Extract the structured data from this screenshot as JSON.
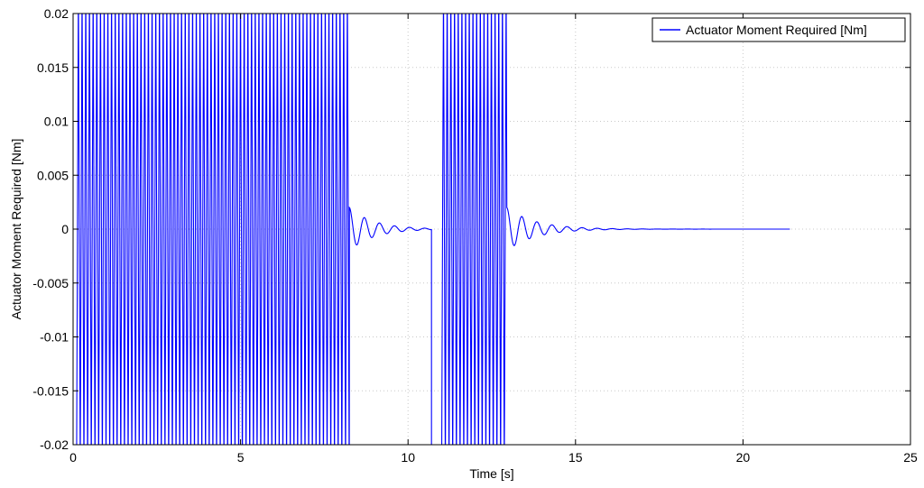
{
  "chart_data": {
    "type": "line",
    "title": "",
    "xlabel": "Time [s]",
    "ylabel": "Actuator Moment Required [Nm]",
    "xlim": [
      0,
      25
    ],
    "ylim": [
      -0.02,
      0.02
    ],
    "x_ticks": [
      "0",
      "5",
      "10",
      "15",
      "20",
      "25"
    ],
    "y_ticks": [
      "0.02",
      "0.015",
      "0.01",
      "0.005",
      "0",
      "-0.005",
      "-0.01",
      "-0.015",
      "-0.02"
    ],
    "grid": true,
    "legend_position": "top-right",
    "series": [
      {
        "name": "Actuator Moment Required [Nm]",
        "color": "#0000ff",
        "segments": [
          {
            "kind": "saturated_oscillation",
            "t_start": 0.1,
            "t_end": 8.25,
            "amplitude_min": -0.02,
            "amplitude_max": 0.02,
            "period": 0.11
          },
          {
            "kind": "damped_oscillation",
            "t_start": 8.25,
            "t_end": 10.7,
            "peak": 0.002,
            "period": 0.45,
            "decay": 1.4,
            "final": 0
          },
          {
            "kind": "step_hold",
            "t": 10.7,
            "value": -0.02,
            "t_end": 11.0
          },
          {
            "kind": "saturated_oscillation",
            "t_start": 11.0,
            "t_end": 12.95,
            "amplitude_min": -0.02,
            "amplitude_max": 0.02,
            "period": 0.11
          },
          {
            "kind": "damped_oscillation",
            "t_start": 12.95,
            "t_end": 21.4,
            "peak": 0.002,
            "period": 0.45,
            "decay": 1.2,
            "final": 0
          }
        ]
      }
    ]
  }
}
